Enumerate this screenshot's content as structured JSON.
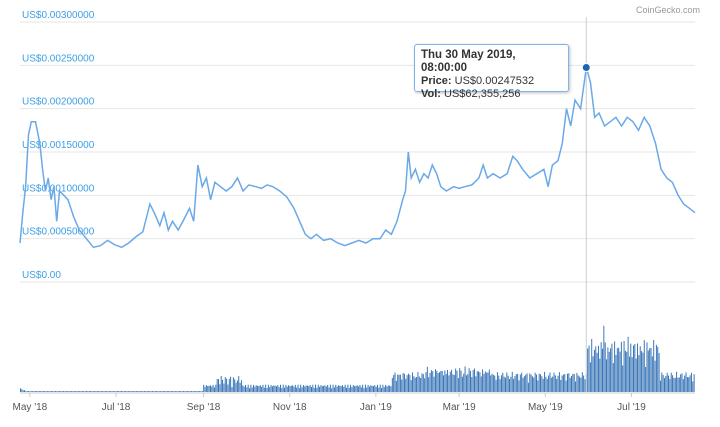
{
  "watermark": "CoinGecko.com",
  "tooltip": {
    "date": "Thu 30 May 2019, 08:00:00",
    "price_label": "Price:",
    "price_value": "US$0.00247532",
    "vol_label": "Vol:",
    "vol_value": "US$62,355,256"
  },
  "colors": {
    "line": "#6aa9e8",
    "bar": "#2f6fb5",
    "axis_label": "#3d9ee6",
    "grid": "#e6e6e6",
    "crosshair": "#cccccc",
    "marker": "#1f64b3"
  },
  "chart_data": [
    {
      "type": "line",
      "title": "",
      "y_axis": {
        "ticks": [
          0,
          0.0005,
          0.001,
          0.0015,
          0.002,
          0.0025,
          0.003
        ],
        "tick_labels": [
          "US$0.00",
          "US$0.00050000",
          "US$0.00100000",
          "US$0.00150000",
          "US$0.00200000",
          "US$0.00250000",
          "US$0.00300000"
        ],
        "ylim": [
          0,
          0.003
        ]
      },
      "x_axis": {
        "tick_labels": [
          "May '18",
          "Jul '18",
          "Sep '18",
          "Nov '18",
          "Jan '19",
          "Mar '19",
          "May '19",
          "Jul '19"
        ],
        "tick_dates": [
          "2018-05-01",
          "2018-07-01",
          "2018-09-01",
          "2018-11-01",
          "2019-01-01",
          "2019-03-01",
          "2019-05-01",
          "2019-07-01"
        ],
        "xlim": [
          "2018-04-24",
          "2019-08-15"
        ]
      },
      "grid": true,
      "highlight": {
        "x": "2019-05-30",
        "y": 0.00247532
      },
      "series": [
        {
          "points": [
            [
              "2018-04-24",
              0.00045
            ],
            [
              "2018-04-26",
              0.0008
            ],
            [
              "2018-04-28",
              0.0011
            ],
            [
              "2018-04-30",
              0.0017
            ],
            [
              "2018-05-02",
              0.00185
            ],
            [
              "2018-05-05",
              0.00185
            ],
            [
              "2018-05-08",
              0.0016
            ],
            [
              "2018-05-10",
              0.0013
            ],
            [
              "2018-05-12",
              0.00105
            ],
            [
              "2018-05-14",
              0.0012
            ],
            [
              "2018-05-16",
              0.00095
            ],
            [
              "2018-05-18",
              0.0011
            ],
            [
              "2018-05-20",
              0.0007
            ],
            [
              "2018-05-22",
              0.00105
            ],
            [
              "2018-05-25",
              0.001
            ],
            [
              "2018-05-28",
              0.00095
            ],
            [
              "2018-06-01",
              0.00075
            ],
            [
              "2018-06-05",
              0.0006
            ],
            [
              "2018-06-10",
              0.0005
            ],
            [
              "2018-06-15",
              0.0004
            ],
            [
              "2018-06-20",
              0.00042
            ],
            [
              "2018-06-25",
              0.00048
            ],
            [
              "2018-06-30",
              0.00043
            ],
            [
              "2018-07-05",
              0.0004
            ],
            [
              "2018-07-10",
              0.00045
            ],
            [
              "2018-07-15",
              0.00052
            ],
            [
              "2018-07-20",
              0.00058
            ],
            [
              "2018-07-25",
              0.0009
            ],
            [
              "2018-07-28",
              0.0008
            ],
            [
              "2018-08-01",
              0.00065
            ],
            [
              "2018-08-04",
              0.0008
            ],
            [
              "2018-08-07",
              0.0006
            ],
            [
              "2018-08-10",
              0.0007
            ],
            [
              "2018-08-14",
              0.0006
            ],
            [
              "2018-08-18",
              0.00072
            ],
            [
              "2018-08-22",
              0.00085
            ],
            [
              "2018-08-25",
              0.0007
            ],
            [
              "2018-08-28",
              0.00135
            ],
            [
              "2018-08-31",
              0.0011
            ],
            [
              "2018-09-03",
              0.0012
            ],
            [
              "2018-09-06",
              0.00095
            ],
            [
              "2018-09-09",
              0.00115
            ],
            [
              "2018-09-13",
              0.0011
            ],
            [
              "2018-09-17",
              0.00105
            ],
            [
              "2018-09-21",
              0.0011
            ],
            [
              "2018-09-25",
              0.0012
            ],
            [
              "2018-09-29",
              0.00105
            ],
            [
              "2018-10-03",
              0.00112
            ],
            [
              "2018-10-08",
              0.0011
            ],
            [
              "2018-10-12",
              0.00108
            ],
            [
              "2018-10-16",
              0.00112
            ],
            [
              "2018-10-20",
              0.0011
            ],
            [
              "2018-10-25",
              0.00105
            ],
            [
              "2018-10-30",
              0.00098
            ],
            [
              "2018-11-04",
              0.00085
            ],
            [
              "2018-11-08",
              0.0007
            ],
            [
              "2018-11-12",
              0.00055
            ],
            [
              "2018-11-16",
              0.0005
            ],
            [
              "2018-11-20",
              0.00055
            ],
            [
              "2018-11-25",
              0.00048
            ],
            [
              "2018-11-30",
              0.0005
            ],
            [
              "2018-12-05",
              0.00045
            ],
            [
              "2018-12-10",
              0.00042
            ],
            [
              "2018-12-15",
              0.00045
            ],
            [
              "2018-12-20",
              0.00048
            ],
            [
              "2018-12-25",
              0.00045
            ],
            [
              "2018-12-30",
              0.0005
            ],
            [
              "2019-01-04",
              0.0005
            ],
            [
              "2019-01-08",
              0.0006
            ],
            [
              "2019-01-12",
              0.00055
            ],
            [
              "2019-01-16",
              0.0007
            ],
            [
              "2019-01-20",
              0.00095
            ],
            [
              "2019-01-22",
              0.00105
            ],
            [
              "2019-01-24",
              0.0015
            ],
            [
              "2019-01-26",
              0.0012
            ],
            [
              "2019-01-29",
              0.0013
            ],
            [
              "2019-02-01",
              0.00115
            ],
            [
              "2019-02-04",
              0.00125
            ],
            [
              "2019-02-07",
              0.0012
            ],
            [
              "2019-02-10",
              0.00135
            ],
            [
              "2019-02-13",
              0.00125
            ],
            [
              "2019-02-16",
              0.0011
            ],
            [
              "2019-02-20",
              0.00105
            ],
            [
              "2019-02-25",
              0.0011
            ],
            [
              "2019-03-01",
              0.00108
            ],
            [
              "2019-03-05",
              0.0011
            ],
            [
              "2019-03-10",
              0.00112
            ],
            [
              "2019-03-15",
              0.0012
            ],
            [
              "2019-03-18",
              0.00135
            ],
            [
              "2019-03-21",
              0.0012
            ],
            [
              "2019-03-25",
              0.00125
            ],
            [
              "2019-03-30",
              0.0012
            ],
            [
              "2019-04-04",
              0.00125
            ],
            [
              "2019-04-08",
              0.00145
            ],
            [
              "2019-04-11",
              0.0014
            ],
            [
              "2019-04-15",
              0.0013
            ],
            [
              "2019-04-20",
              0.0012
            ],
            [
              "2019-04-25",
              0.00125
            ],
            [
              "2019-04-30",
              0.0013
            ],
            [
              "2019-05-03",
              0.0011
            ],
            [
              "2019-05-06",
              0.00135
            ],
            [
              "2019-05-10",
              0.0014
            ],
            [
              "2019-05-13",
              0.0016
            ],
            [
              "2019-05-16",
              0.002
            ],
            [
              "2019-05-19",
              0.0018
            ],
            [
              "2019-05-22",
              0.0021
            ],
            [
              "2019-05-26",
              0.002
            ],
            [
              "2019-05-30",
              0.00247532
            ],
            [
              "2019-06-02",
              0.0023
            ],
            [
              "2019-06-05",
              0.0019
            ],
            [
              "2019-06-08",
              0.00195
            ],
            [
              "2019-06-12",
              0.0018
            ],
            [
              "2019-06-16",
              0.00185
            ],
            [
              "2019-06-20",
              0.0019
            ],
            [
              "2019-06-24",
              0.0018
            ],
            [
              "2019-06-28",
              0.0019
            ],
            [
              "2019-07-02",
              0.00185
            ],
            [
              "2019-07-06",
              0.00175
            ],
            [
              "2019-07-10",
              0.0019
            ],
            [
              "2019-07-14",
              0.0018
            ],
            [
              "2019-07-18",
              0.0016
            ],
            [
              "2019-07-22",
              0.0013
            ],
            [
              "2019-07-26",
              0.0012
            ],
            [
              "2019-07-30",
              0.00115
            ],
            [
              "2019-08-03",
              0.001
            ],
            [
              "2019-08-07",
              0.0009
            ],
            [
              "2019-08-11",
              0.00085
            ],
            [
              "2019-08-15",
              0.0008
            ]
          ]
        }
      ]
    },
    {
      "type": "bar",
      "title": "",
      "ylim": [
        0,
        100
      ],
      "series": [
        {
          "values": [
            4,
            3,
            2,
            2,
            1,
            1,
            1,
            1,
            1,
            1,
            1,
            1,
            1,
            1,
            1,
            1,
            1,
            1,
            1,
            1,
            1,
            1,
            1,
            1,
            1,
            1,
            1,
            1,
            1,
            1,
            1,
            1,
            1,
            1,
            1,
            1,
            1,
            1,
            1,
            1,
            1,
            1,
            1,
            1,
            1,
            1,
            1,
            1,
            1,
            1,
            1,
            1,
            1,
            1,
            1,
            1,
            1,
            1,
            1,
            1,
            1,
            1,
            1,
            1,
            1,
            1,
            1,
            1,
            1,
            1,
            1,
            1,
            1,
            1,
            1,
            1,
            1,
            1,
            1,
            1,
            1,
            1,
            1,
            1,
            1,
            1,
            1,
            1,
            1,
            1,
            1,
            1,
            1,
            1,
            1,
            1,
            1,
            1,
            1,
            1,
            1,
            1,
            1,
            1,
            1,
            1,
            1,
            1,
            1,
            1,
            1,
            1,
            1,
            1,
            1,
            1,
            1,
            1,
            1,
            1,
            1,
            1,
            1,
            1,
            1,
            1,
            1,
            1,
            1,
            1,
            1,
            1,
            1,
            1,
            1,
            1,
            1,
            1,
            1,
            1,
            1,
            1,
            1,
            1,
            1,
            1,
            1,
            1,
            1,
            1,
            1,
            1,
            1,
            1,
            1,
            1,
            1,
            1,
            1,
            1,
            1,
            1,
            1,
            1,
            1,
            1,
            1,
            1,
            1,
            1,
            1,
            1,
            1,
            1,
            1,
            1,
            1,
            1,
            1,
            1,
            1,
            1,
            1,
            1,
            1,
            1,
            1,
            1,
            1,
            1,
            1,
            1,
            1,
            1,
            1,
            1,
            1,
            1,
            1,
            1,
            1,
            1,
            1,
            1,
            1,
            1,
            1,
            1,
            1,
            1,
            1,
            1,
            1,
            1,
            1,
            1,
            1,
            1,
            1,
            1,
            1,
            1,
            1,
            1,
            1,
            1,
            1,
            1,
            1,
            1,
            1,
            1,
            1,
            1,
            1,
            1,
            1,
            1,
            1,
            1,
            1,
            1,
            1,
            1,
            1,
            1,
            1,
            1,
            1,
            1,
            1,
            1,
            1,
            1,
            1,
            1,
            1,
            1,
            1,
            1,
            1,
            1,
            1,
            1,
            1,
            1,
            1,
            1,
            1,
            1,
            1,
            1,
            1,
            1,
            1,
            1,
            1,
            1,
            1,
            1,
            1,
            1,
            1,
            1,
            1,
            1,
            1,
            1,
            1,
            1,
            1,
            1,
            1,
            1,
            1,
            1,
            1,
            1,
            1,
            1,
            1,
            1,
            1,
            1,
            1,
            1,
            1,
            1,
            1,
            1,
            1,
            1,
            1,
            1,
            1,
            1,
            1,
            1,
            1,
            1,
            1,
            1,
            1,
            1,
            1,
            1,
            1,
            1,
            1,
            1,
            1,
            1,
            1,
            1,
            1,
            1,
            1,
            1,
            1,
            1,
            1,
            1,
            1,
            1,
            1,
            1,
            1,
            1,
            1,
            1,
            1,
            1,
            1,
            1,
            1,
            1,
            1,
            1,
            1,
            1,
            1,
            1,
            1,
            1,
            1,
            1,
            1,
            1,
            1,
            1,
            1,
            1,
            1,
            1,
            1,
            1,
            1,
            1,
            1,
            1,
            1,
            1,
            1,
            1,
            1,
            1,
            1,
            1,
            1,
            1,
            1,
            1,
            1,
            1,
            1,
            1,
            1,
            1,
            1,
            1,
            1,
            1,
            1,
            1,
            1,
            1,
            1,
            1,
            1,
            1,
            1,
            1,
            1,
            1,
            1,
            1,
            1,
            1,
            1,
            1,
            1,
            1,
            1,
            1,
            1,
            1,
            1,
            1,
            1,
            1,
            1,
            1,
            1,
            1,
            1,
            1,
            1,
            1,
            1,
            1,
            1,
            1,
            1,
            1,
            1,
            1,
            1,
            1,
            1,
            1,
            1,
            1,
            1,
            1,
            1,
            1,
            1,
            1,
            1,
            1,
            1,
            1,
            1,
            1,
            1,
            1,
            1,
            1,
            1,
            1,
            1,
            1,
            1,
            1,
            1,
            1,
            1,
            1,
            1,
            1,
            1,
            1,
            1,
            1,
            1,
            1,
            1,
            1,
            1,
            1,
            1,
            1,
            1,
            1,
            1,
            1,
            1,
            1,
            1,
            1,
            1
          ]
        }
      ]
    }
  ]
}
